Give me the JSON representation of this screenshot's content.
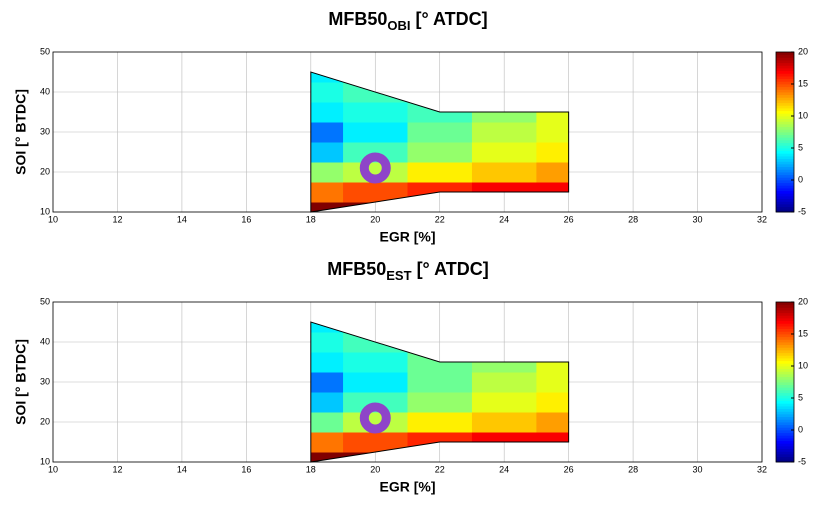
{
  "chart_data": [
    {
      "type": "contour",
      "title": "MFB50",
      "title_sub": "OBI",
      "title_end": " [° ATDC]",
      "x_label": "EGR [%]",
      "y_label": "SOI [° BTDC]",
      "xlim": [
        10,
        32
      ],
      "xticks": [
        10,
        12,
        14,
        16,
        18,
        20,
        22,
        24,
        26,
        28,
        30,
        32
      ],
      "ylim": [
        10,
        50
      ],
      "yticks": [
        10,
        20,
        30,
        40,
        50
      ],
      "grid": true,
      "colormap": "jet",
      "clim": [
        -5,
        20
      ],
      "cticks": [
        -5,
        0,
        5,
        10,
        15,
        20
      ],
      "x": [
        18,
        20,
        22,
        24,
        26
      ],
      "y": [
        10,
        15,
        20,
        25,
        30,
        35,
        40,
        45
      ],
      "z": [
        [
          20,
          20,
          null,
          null,
          null
        ],
        [
          14,
          15,
          16,
          17,
          17
        ],
        [
          8,
          9,
          11,
          12,
          13
        ],
        [
          3,
          6,
          8,
          10,
          11
        ],
        [
          1,
          4,
          7,
          9,
          10
        ],
        [
          4,
          5,
          6,
          8,
          10
        ],
        [
          5,
          6,
          null,
          null,
          null
        ],
        [
          4,
          null,
          null,
          null,
          null
        ]
      ],
      "domain_x": [
        18,
        18,
        22,
        26,
        26,
        22,
        18
      ],
      "domain_y": [
        10,
        45,
        35,
        35,
        15,
        15,
        10
      ],
      "marker": [
        20,
        21
      ],
      "marker_color": "#8e44c9"
    },
    {
      "type": "contour",
      "title": "MFB50",
      "title_sub": "EST",
      "title_end": " [° ATDC]",
      "x_label": "EGR [%]",
      "y_label": "SOI [° BTDC]",
      "xlim": [
        10,
        32
      ],
      "xticks": [
        10,
        12,
        14,
        16,
        18,
        20,
        22,
        24,
        26,
        28,
        30,
        32
      ],
      "ylim": [
        10,
        50
      ],
      "yticks": [
        10,
        20,
        30,
        40,
        50
      ],
      "grid": true,
      "colormap": "jet",
      "clim": [
        -5,
        20
      ],
      "cticks": [
        -5,
        0,
        5,
        10,
        15,
        20
      ],
      "x": [
        18,
        20,
        22,
        24,
        26
      ],
      "y": [
        10,
        15,
        20,
        25,
        30,
        35,
        40,
        45
      ],
      "z": [
        [
          20,
          20,
          null,
          null,
          null
        ],
        [
          14,
          15,
          16,
          17,
          17
        ],
        [
          7,
          9,
          11,
          12,
          13
        ],
        [
          3,
          6,
          8,
          10,
          11
        ],
        [
          1,
          4,
          7,
          9,
          10
        ],
        [
          4,
          5,
          7,
          8,
          10
        ],
        [
          5,
          6,
          null,
          null,
          null
        ],
        [
          4,
          null,
          null,
          null,
          null
        ]
      ],
      "domain_x": [
        18,
        18,
        22,
        26,
        26,
        22,
        18
      ],
      "domain_y": [
        10,
        45,
        35,
        35,
        15,
        15,
        10
      ],
      "marker": [
        20,
        21
      ],
      "marker_color": "#8e44c9"
    }
  ]
}
